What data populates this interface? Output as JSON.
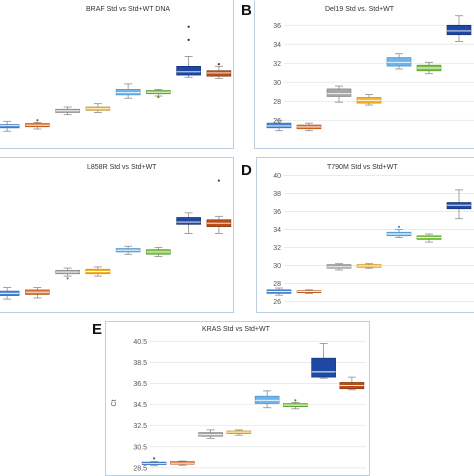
{
  "colors": {
    "frame": "#bcd0e2",
    "grid": "#e3e3e3",
    "whisker": "#8c8c8c",
    "box_colors": [
      "#4a86d6",
      "#e0702f",
      "#a6a6a6",
      "#f4b224",
      "#6cb4ea",
      "#7ac143",
      "#1f48a4",
      "#b94e1a"
    ],
    "box_edges": [
      "#2f63ad",
      "#a9501d",
      "#7e7e7e",
      "#c38a10",
      "#3f8ac3",
      "#4f9127",
      "#102c6d",
      "#7e3008"
    ]
  },
  "chart_data": [
    {
      "type": "box",
      "panel": "",
      "title": "BRAF Std vs Std+WT DNA",
      "ylabel": "",
      "ylim": [
        25.5,
        37.5
      ],
      "yticks": [],
      "boxes": [
        {
          "q1": 26.6,
          "median": 26.8,
          "q3": 26.9,
          "min": 26.3,
          "max": 27.2,
          "outliers": []
        },
        {
          "q1": 26.7,
          "median": 26.85,
          "q3": 27.0,
          "min": 26.5,
          "max": 27.1,
          "outliers": [
            27.3
          ]
        },
        {
          "q1": 28.0,
          "median": 28.15,
          "q3": 28.3,
          "min": 27.8,
          "max": 28.5,
          "outliers": []
        },
        {
          "q1": 28.2,
          "median": 28.35,
          "q3": 28.5,
          "min": 28.0,
          "max": 28.8,
          "outliers": []
        },
        {
          "q1": 29.6,
          "median": 29.8,
          "q3": 30.1,
          "min": 29.3,
          "max": 30.6,
          "outliers": []
        },
        {
          "q1": 29.7,
          "median": 29.85,
          "q3": 30.0,
          "min": 29.5,
          "max": 30.1,
          "outliers": [
            29.4
          ]
        },
        {
          "q1": 31.4,
          "median": 31.7,
          "q3": 32.2,
          "min": 31.2,
          "max": 33.1,
          "outliers": [
            34.6,
            35.8
          ]
        },
        {
          "q1": 31.3,
          "median": 31.6,
          "q3": 31.8,
          "min": 31.1,
          "max": 32.2,
          "outliers": [
            32.4
          ]
        }
      ]
    },
    {
      "type": "box",
      "panel": "B",
      "title": "Del19 Std vs. Std+WT",
      "ylabel": "",
      "ylim": [
        23.5,
        37.5
      ],
      "yticks": [
        26,
        28,
        30,
        32,
        34,
        36
      ],
      "boxes": [
        {
          "q1": 25.2,
          "median": 25.4,
          "q3": 25.7,
          "min": 24.9,
          "max": 26.0,
          "outliers": []
        },
        {
          "q1": 25.1,
          "median": 25.3,
          "q3": 25.5,
          "min": 24.9,
          "max": 25.7,
          "outliers": []
        },
        {
          "q1": 28.5,
          "median": 28.8,
          "q3": 29.3,
          "min": 27.9,
          "max": 29.6,
          "outliers": []
        },
        {
          "q1": 27.8,
          "median": 28.1,
          "q3": 28.4,
          "min": 27.6,
          "max": 28.7,
          "outliers": []
        },
        {
          "q1": 31.7,
          "median": 32.1,
          "q3": 32.6,
          "min": 31.4,
          "max": 33.0,
          "outliers": []
        },
        {
          "q1": 31.2,
          "median": 31.5,
          "q3": 31.8,
          "min": 30.9,
          "max": 32.1,
          "outliers": []
        },
        {
          "q1": 35.0,
          "median": 35.4,
          "q3": 36.0,
          "min": 34.3,
          "max": 37.0,
          "outliers": []
        }
      ]
    },
    {
      "type": "box",
      "panel": "",
      "title": "L858R Std vs Std+WT",
      "ylabel": "",
      "ylim": [
        25.5,
        37.5
      ],
      "yticks": [],
      "boxes": [
        {
          "q1": 26.4,
          "median": 26.6,
          "q3": 26.8,
          "min": 26.1,
          "max": 27.1,
          "outliers": []
        },
        {
          "q1": 26.5,
          "median": 26.7,
          "q3": 26.9,
          "min": 26.2,
          "max": 27.1,
          "outliers": []
        },
        {
          "q1": 28.3,
          "median": 28.45,
          "q3": 28.6,
          "min": 28.1,
          "max": 28.8,
          "outliers": [
            27.9
          ]
        },
        {
          "q1": 28.3,
          "median": 28.5,
          "q3": 28.7,
          "min": 28.1,
          "max": 28.9,
          "outliers": []
        },
        {
          "q1": 30.2,
          "median": 30.35,
          "q3": 30.5,
          "min": 30.0,
          "max": 30.7,
          "outliers": []
        },
        {
          "q1": 30.0,
          "median": 30.2,
          "q3": 30.4,
          "min": 29.8,
          "max": 30.6,
          "outliers": []
        },
        {
          "q1": 32.6,
          "median": 32.8,
          "q3": 33.2,
          "min": 31.8,
          "max": 33.6,
          "outliers": []
        },
        {
          "q1": 32.4,
          "median": 32.7,
          "q3": 33.0,
          "min": 31.8,
          "max": 33.3,
          "outliers": [
            36.4
          ]
        }
      ]
    },
    {
      "type": "box",
      "panel": "D",
      "title": "T790M Std vs Std+WT",
      "ylabel": "",
      "ylim": [
        25.5,
        40.5
      ],
      "yticks": [
        26,
        28,
        30,
        32,
        34,
        36,
        38,
        40
      ],
      "boxes": [
        {
          "q1": 26.9,
          "median": 27.1,
          "q3": 27.3,
          "min": 26.7,
          "max": 27.5,
          "outliers": []
        },
        {
          "q1": 27.0,
          "median": 27.1,
          "q3": 27.2,
          "min": 26.9,
          "max": 27.3,
          "outliers": []
        },
        {
          "q1": 29.7,
          "median": 29.85,
          "q3": 30.1,
          "min": 29.5,
          "max": 30.2,
          "outliers": []
        },
        {
          "q1": 29.8,
          "median": 29.95,
          "q3": 30.1,
          "min": 29.7,
          "max": 30.2,
          "outliers": []
        },
        {
          "q1": 33.3,
          "median": 33.5,
          "q3": 33.7,
          "min": 33.1,
          "max": 34.0,
          "outliers": [
            34.3
          ]
        },
        {
          "q1": 32.9,
          "median": 33.1,
          "q3": 33.3,
          "min": 32.6,
          "max": 33.5,
          "outliers": []
        },
        {
          "q1": 36.3,
          "median": 36.7,
          "q3": 37.0,
          "min": 35.2,
          "max": 38.4,
          "outliers": []
        }
      ]
    },
    {
      "type": "box",
      "panel": "E",
      "title": "KRAS Std vs Std+WT",
      "ylabel": "Ct",
      "ylim": [
        28.3,
        41.0
      ],
      "yticks": [
        28.5,
        30.5,
        32.5,
        34.5,
        36.5,
        38.5,
        40.5
      ],
      "ytick_labels": [
        "28.5",
        "30.5",
        "32.5",
        "34.5",
        "36.5",
        "38.5",
        "40.5"
      ],
      "boxes": [
        {
          "q1": 28.8,
          "median": 28.9,
          "q3": 29.05,
          "min": 28.7,
          "max": 29.1,
          "outliers": [
            29.4
          ]
        },
        {
          "q1": 28.85,
          "median": 28.95,
          "q3": 29.1,
          "min": 28.75,
          "max": 29.15,
          "outliers": []
        },
        {
          "q1": 31.5,
          "median": 31.65,
          "q3": 31.85,
          "min": 31.3,
          "max": 32.1,
          "outliers": []
        },
        {
          "q1": 31.75,
          "median": 31.9,
          "q3": 32.0,
          "min": 31.6,
          "max": 32.1,
          "outliers": []
        },
        {
          "q1": 34.6,
          "median": 34.9,
          "q3": 35.3,
          "min": 34.2,
          "max": 35.8,
          "outliers": []
        },
        {
          "q1": 34.3,
          "median": 34.45,
          "q3": 34.6,
          "min": 34.1,
          "max": 34.7,
          "outliers": [
            34.9
          ]
        },
        {
          "q1": 37.1,
          "median": 37.6,
          "q3": 38.9,
          "min": 37.0,
          "max": 40.3,
          "outliers": []
        },
        {
          "q1": 36.0,
          "median": 36.3,
          "q3": 36.6,
          "min": 35.9,
          "max": 37.1,
          "outliers": []
        }
      ]
    }
  ]
}
